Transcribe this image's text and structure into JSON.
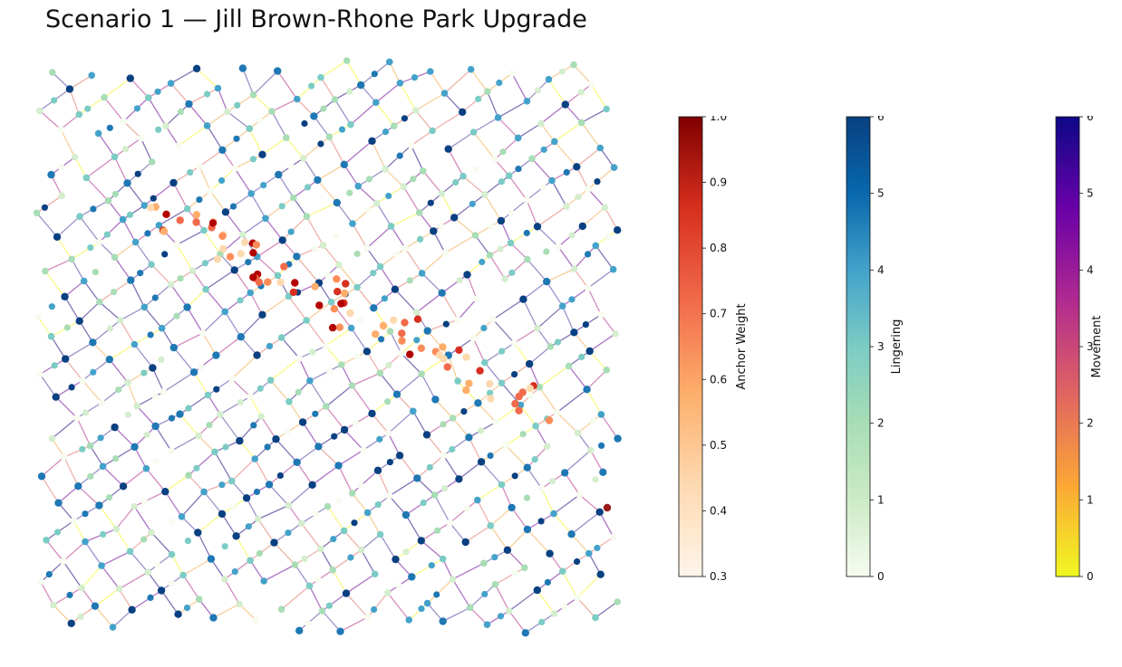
{
  "title": "Scenario 1 — Jill Brown-Rhone Park Upgrade",
  "colorbars": [
    {
      "id": "anchor",
      "label": "Anchor Weight",
      "range": [
        0.3,
        1.0
      ],
      "ticks": [
        "0.3",
        "0.4",
        "0.5",
        "0.6",
        "0.7",
        "0.8",
        "0.9",
        "1.0"
      ],
      "colors": [
        "#fff5eb",
        "#fdd9b0",
        "#fdae6b",
        "#f16a4a",
        "#d7301f",
        "#7f0000"
      ]
    },
    {
      "id": "lingering",
      "label": "Lingering",
      "range": [
        0,
        6
      ],
      "ticks": [
        "0",
        "1",
        "2",
        "3",
        "4",
        "5",
        "6"
      ],
      "colors": [
        "#f7fcf0",
        "#ccebc5",
        "#a8ddb5",
        "#7bccc4",
        "#43a2ca",
        "#0868ac",
        "#084081"
      ]
    },
    {
      "id": "movement",
      "label": "Movement",
      "range": [
        0,
        6
      ],
      "ticks": [
        "0",
        "1",
        "2",
        "3",
        "4",
        "5",
        "6"
      ],
      "colors": [
        "#f0f921",
        "#fca636",
        "#e16462",
        "#b12a90",
        "#6a00a8",
        "#0d0887"
      ]
    }
  ]
}
